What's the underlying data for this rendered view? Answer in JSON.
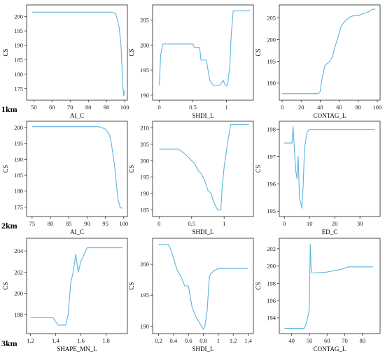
{
  "row_labels": [
    "1km",
    "2km",
    "3km"
  ],
  "line_color": "#5bb4e0",
  "chart_data": [
    {
      "type": "line",
      "title": "",
      "xlabel": "AI_C",
      "ylabel": "CS",
      "xlim": [
        46,
        101.5
      ],
      "ylim": [
        171,
        204
      ],
      "xticks": [
        50,
        60,
        70,
        80,
        90,
        100
      ],
      "yticks": [
        175,
        180,
        185,
        190,
        195,
        200
      ],
      "series": [
        {
          "x": [
            49,
            85,
            93,
            95,
            96,
            97,
            98,
            98.5,
            99,
            99.5,
            100
          ],
          "y": [
            201.5,
            201.5,
            201.5,
            201,
            199,
            196,
            190,
            183,
            176,
            172.5,
            174.5
          ]
        }
      ]
    },
    {
      "type": "line",
      "title": "",
      "xlabel": "SHDI_L",
      "ylabel": "CS",
      "xlim": [
        -0.1,
        1.4
      ],
      "ylim": [
        189,
        208
      ],
      "xticks": [
        0.0,
        0.5,
        1.0
      ],
      "yticks": [
        190,
        195,
        200,
        205
      ],
      "series": [
        {
          "x": [
            0,
            0.02,
            0.05,
            0.1,
            0.5,
            0.52,
            0.6,
            0.62,
            0.7,
            0.75,
            0.8,
            0.9,
            0.95,
            0.98,
            1.0,
            1.02,
            1.05,
            1.07,
            1.1,
            1.35
          ],
          "y": [
            192,
            198,
            200.2,
            200.2,
            200.2,
            199.5,
            199.5,
            197,
            197,
            193,
            192,
            192,
            193,
            192,
            191.8,
            192.5,
            196,
            202,
            206.8,
            206.8
          ]
        }
      ]
    },
    {
      "type": "line",
      "title": "",
      "xlabel": "CONTAG_L",
      "ylabel": "CS",
      "xlim": [
        -3,
        103
      ],
      "ylim": [
        186,
        208
      ],
      "xticks": [
        0,
        20,
        40,
        60,
        80,
        100
      ],
      "yticks": [
        190,
        195,
        200,
        205
      ],
      "series": [
        {
          "x": [
            0,
            30,
            38,
            40,
            42,
            45,
            50,
            53,
            55,
            58,
            62,
            65,
            70,
            72,
            75,
            80,
            85,
            90,
            95,
            98
          ],
          "y": [
            187.5,
            187.5,
            187.5,
            188,
            191,
            194,
            195,
            196,
            198,
            200,
            203,
            204,
            205,
            205.3,
            205.5,
            205.5,
            206,
            206.3,
            207,
            207
          ]
        }
      ]
    },
    {
      "type": "line",
      "title": "",
      "xlabel": "AI_C",
      "ylabel": "CS",
      "xlim": [
        73.5,
        101
      ],
      "ylim": [
        172,
        202
      ],
      "xticks": [
        75,
        80,
        85,
        90,
        95,
        100
      ],
      "yticks": [
        175,
        180,
        185,
        190,
        195,
        200
      ],
      "series": [
        {
          "x": [
            75,
            93,
            94,
            95,
            96,
            96.5,
            97,
            97.5,
            98,
            98.5,
            99,
            99.3,
            99.7
          ],
          "y": [
            200.3,
            200.3,
            200,
            199.5,
            198,
            196,
            192,
            188,
            182,
            177,
            175,
            174.7,
            174.7
          ]
        }
      ]
    },
    {
      "type": "line",
      "title": "",
      "xlabel": "SHDI_L",
      "ylabel": "CS",
      "xlim": [
        -0.1,
        1.45
      ],
      "ylim": [
        183,
        212
      ],
      "xticks": [
        0.0,
        0.5,
        1.0
      ],
      "yticks": [
        185,
        190,
        195,
        200,
        205,
        210
      ],
      "series": [
        {
          "x": [
            0,
            0.3,
            0.4,
            0.45,
            0.55,
            0.6,
            0.65,
            0.7,
            0.75,
            0.8,
            0.83,
            0.85,
            0.9,
            0.95,
            0.97,
            1.0,
            1.05,
            1.1,
            1.38
          ],
          "y": [
            203.5,
            203.5,
            202,
            201,
            199,
            197,
            196,
            194,
            191,
            190,
            188,
            187,
            185,
            185,
            192,
            198,
            205,
            211,
            211
          ]
        }
      ]
    },
    {
      "type": "line",
      "title": "",
      "xlabel": "ED_C",
      "ylabel": "CS",
      "xlim": [
        -2,
        38
      ],
      "ylim": [
        194.8,
        198.3
      ],
      "xticks": [
        0,
        10,
        20,
        30
      ],
      "yticks": [
        195,
        196,
        197,
        198
      ],
      "series": [
        {
          "x": [
            0,
            3,
            3.5,
            4,
            4.5,
            5,
            5.5,
            6,
            6.5,
            7,
            7.5,
            8,
            9,
            10,
            36
          ],
          "y": [
            197.5,
            197.5,
            198.1,
            197.2,
            196.5,
            196.2,
            197,
            195.5,
            195.3,
            195.1,
            196,
            197.3,
            197.9,
            198,
            198
          ]
        }
      ]
    },
    {
      "type": "line",
      "title": "",
      "xlabel": "SHAPE_MN_L",
      "ylabel": "CS",
      "xlim": [
        1.17,
        1.97
      ],
      "ylim": [
        196.2,
        205.2
      ],
      "xticks": [
        1.2,
        1.4,
        1.6,
        1.8
      ],
      "yticks": [
        198,
        200,
        202,
        204
      ],
      "series": [
        {
          "x": [
            1.2,
            1.38,
            1.42,
            1.48,
            1.5,
            1.52,
            1.54,
            1.56,
            1.58,
            1.6,
            1.62,
            1.65,
            1.7,
            1.93
          ],
          "y": [
            197.7,
            197.7,
            197,
            197,
            198,
            201,
            202,
            203.7,
            202,
            203,
            203.5,
            204.3,
            204.3,
            204.3
          ]
        }
      ]
    },
    {
      "type": "line",
      "title": "",
      "xlabel": "SHDI_L",
      "ylabel": "CS",
      "xlim": [
        0.12,
        1.47
      ],
      "ylim": [
        188.8,
        204.2
      ],
      "xticks": [
        0.2,
        0.4,
        0.6,
        0.8,
        1.0,
        1.2,
        1.4
      ],
      "yticks": [
        190,
        195,
        200
      ],
      "series": [
        {
          "x": [
            0.2,
            0.33,
            0.36,
            0.4,
            0.45,
            0.5,
            0.55,
            0.6,
            0.65,
            0.7,
            0.75,
            0.8,
            0.82,
            0.85,
            0.88,
            0.9,
            0.95,
            1.0,
            1.05,
            1.4
          ],
          "y": [
            203.2,
            203.2,
            202.5,
            201,
            199,
            198,
            196.5,
            196.5,
            193,
            191.5,
            190.5,
            189.5,
            190,
            192.5,
            198,
            198.5,
            199,
            199.3,
            199.3,
            199.3
          ]
        }
      ]
    },
    {
      "type": "line",
      "title": "",
      "xlabel": "CONTAG_L",
      "ylabel": "CS",
      "xlim": [
        33,
        90
      ],
      "ylim": [
        192.2,
        203.2
      ],
      "xticks": [
        40,
        50,
        60,
        70,
        80
      ],
      "yticks": [
        194,
        196,
        198,
        200,
        202
      ],
      "series": [
        {
          "x": [
            36,
            47,
            48,
            49,
            50,
            50.5,
            51,
            51.5,
            53,
            60,
            65,
            68,
            72,
            86
          ],
          "y": [
            192.8,
            192.8,
            193.2,
            194,
            195,
            202.5,
            199.5,
            199.2,
            199.2,
            199.3,
            199.5,
            199.6,
            199.9,
            199.9
          ]
        }
      ]
    }
  ]
}
